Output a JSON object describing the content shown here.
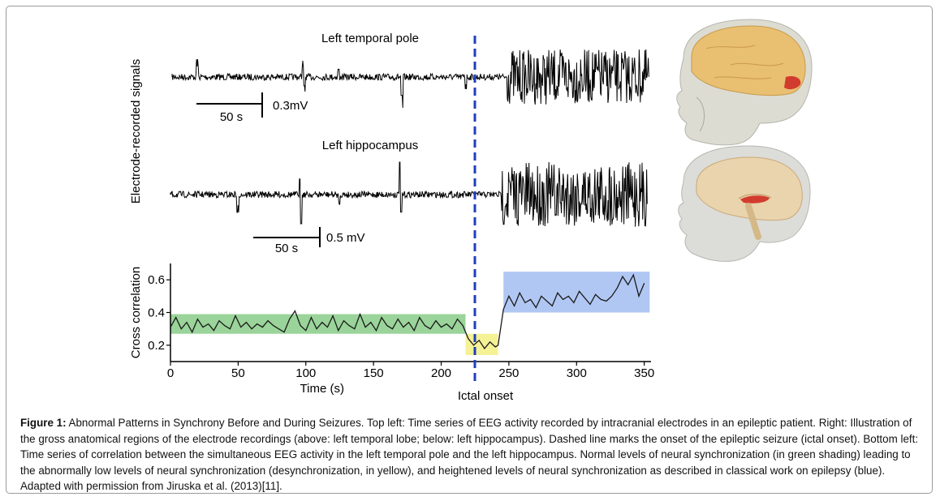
{
  "figure": {
    "panel_top_title": "Left temporal pole",
    "panel_mid_title": "Left hippocampus",
    "y_label_signals": "Electrode-recorded signals",
    "scale_top_time": "50 s",
    "scale_top_amp": "0.3mV",
    "scale_mid_time": "50 s",
    "scale_mid_amp": "0.5 mV",
    "onset_label": "Ictal onset",
    "colors": {
      "trace": "#000000",
      "onset_line": "#1f3fbf",
      "green_band": "#8fcf8f",
      "yellow_band": "#f4f08a",
      "blue_band": "#a9c1f2",
      "corr_line": "#1a1a1a",
      "brain": "#e9c07a",
      "skull": "#d7d7cf",
      "region": "#d23c2e"
    },
    "icons": [
      "skull-brain-lateral-icon",
      "skull-brain-medial-icon"
    ]
  },
  "chart_data": {
    "type": "line",
    "xlabel": "Time (s)",
    "ylabel": "Cross correlation",
    "xlim": [
      0,
      355
    ],
    "ylim": [
      0.1,
      0.7
    ],
    "xticks": [
      0,
      50,
      100,
      150,
      200,
      250,
      300,
      350
    ],
    "yticks": [
      0.2,
      0.4,
      0.6
    ],
    "grid": false,
    "onset_x": 226,
    "shaded_regions": [
      {
        "color": "green",
        "x": [
          0,
          218
        ],
        "y": [
          0.27,
          0.39
        ]
      },
      {
        "color": "yellow",
        "x": [
          218,
          242
        ],
        "y": [
          0.14,
          0.27
        ]
      },
      {
        "color": "blue",
        "x": [
          246,
          354
        ],
        "y": [
          0.4,
          0.65
        ]
      }
    ],
    "series": [
      {
        "x": [
          0,
          4,
          8,
          12,
          16,
          20,
          24,
          28,
          32,
          36,
          40,
          44,
          48,
          52,
          56,
          60,
          64,
          68,
          72,
          76,
          80,
          84,
          88,
          92,
          96,
          100,
          104,
          108,
          112,
          116,
          120,
          124,
          128,
          132,
          136,
          140,
          144,
          148,
          152,
          156,
          160,
          164,
          168,
          172,
          176,
          180,
          184,
          188,
          192,
          196,
          200,
          204,
          208,
          212,
          216,
          220,
          224,
          228,
          232,
          236,
          240,
          242,
          246,
          250,
          254,
          258,
          262,
          266,
          270,
          274,
          278,
          282,
          286,
          290,
          294,
          298,
          302,
          306,
          310,
          314,
          318,
          322,
          326,
          330,
          334,
          338,
          342,
          346,
          350
        ],
        "values": [
          0.31,
          0.37,
          0.3,
          0.34,
          0.28,
          0.36,
          0.31,
          0.33,
          0.29,
          0.35,
          0.32,
          0.3,
          0.38,
          0.31,
          0.34,
          0.3,
          0.33,
          0.31,
          0.35,
          0.32,
          0.3,
          0.28,
          0.36,
          0.41,
          0.32,
          0.29,
          0.37,
          0.3,
          0.34,
          0.31,
          0.38,
          0.29,
          0.35,
          0.32,
          0.3,
          0.39,
          0.31,
          0.34,
          0.29,
          0.37,
          0.32,
          0.3,
          0.36,
          0.31,
          0.34,
          0.29,
          0.37,
          0.32,
          0.3,
          0.35,
          0.31,
          0.33,
          0.3,
          0.36,
          0.32,
          0.24,
          0.2,
          0.23,
          0.18,
          0.22,
          0.19,
          0.2,
          0.42,
          0.5,
          0.44,
          0.52,
          0.46,
          0.48,
          0.43,
          0.5,
          0.47,
          0.44,
          0.52,
          0.48,
          0.5,
          0.46,
          0.53,
          0.49,
          0.45,
          0.51,
          0.48,
          0.47,
          0.5,
          0.55,
          0.62,
          0.57,
          0.63,
          0.5,
          0.58
        ]
      }
    ]
  },
  "caption": {
    "label": "Figure 1:",
    "text": " Abnormal Patterns in Synchrony Before and During Seizures. Top left: Time series of EEG activity recorded by intracranial electrodes in an epileptic patient. Right: Illustration of the gross anatomical regions of the electrode recordings (above: left temporal lobe; below: left hippocampus). Dashed line marks the onset of the epileptic seizure (ictal onset). Bottom left: Time series of correlation between the simultaneous EEG activity in the left temporal pole and the left hippocampus. Normal levels of neural synchronization (in green shading) leading to the abnormally low levels of neural synchronization (desynchronization, in yellow), and heightened levels of neural synchronization as described in classical work on epilepsy (blue). Adapted with permission from Jiruska et al. (2013)[11]."
  }
}
